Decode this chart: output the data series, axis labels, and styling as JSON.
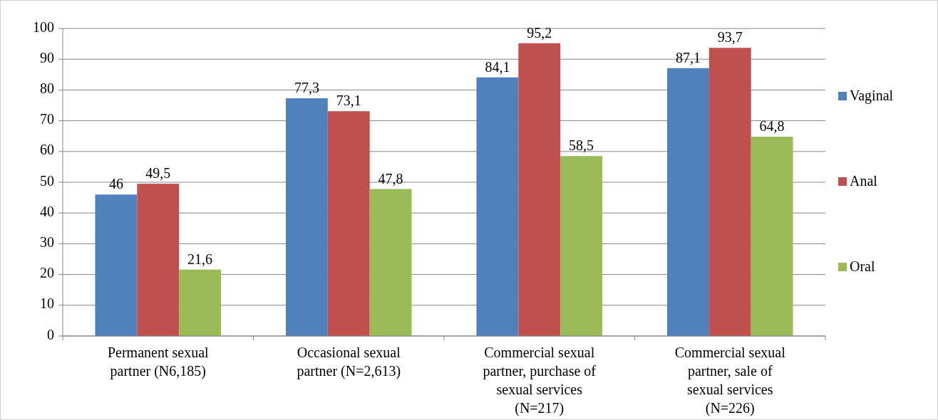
{
  "chart_data": {
    "type": "bar",
    "categories": [
      "Permanent sexual partner (N6,185)",
      "Occasional sexual partner (N=2,613)",
      "Commercial sexual partner, purchase of sexual services (N=217)",
      "Commercial sexual partner, sale of sexual services (N=226)"
    ],
    "series": [
      {
        "name": "Vaginal",
        "color": "#4f81bd",
        "values": [
          46,
          77.3,
          84.1,
          87.1
        ],
        "value_labels": [
          "46",
          "77,3",
          "84,1",
          "87,1"
        ]
      },
      {
        "name": "Anal",
        "color": "#c0504d",
        "values": [
          49.5,
          73.1,
          95.2,
          93.7
        ],
        "value_labels": [
          "49,5",
          "73,1",
          "95,2",
          "93,7"
        ]
      },
      {
        "name": "Oral",
        "color": "#9bbb59",
        "values": [
          21.6,
          47.8,
          58.5,
          64.8
        ],
        "value_labels": [
          "21,6",
          "47,8",
          "58,5",
          "64,8"
        ]
      }
    ],
    "ylim": [
      0,
      100
    ],
    "yticks": [
      0,
      10,
      20,
      30,
      40,
      50,
      60,
      70,
      80,
      90,
      100
    ],
    "grid": "y",
    "legend": "right"
  }
}
